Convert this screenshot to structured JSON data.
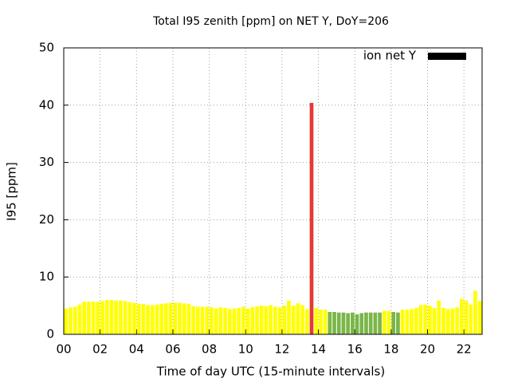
{
  "chart_data": {
    "type": "bar",
    "title": "Total I95 zenith [ppm] on NET Y, DoY=206",
    "x_label": "Time of day UTC (15-minute intervals)",
    "y_label": "I95 [ppm]",
    "xlim": [
      0,
      23
    ],
    "ylim": [
      0,
      50
    ],
    "xticks": [
      {
        "value": 0,
        "label": "00"
      },
      {
        "value": 2,
        "label": "02"
      },
      {
        "value": 4,
        "label": "04"
      },
      {
        "value": 6,
        "label": "06"
      },
      {
        "value": 8,
        "label": "08"
      },
      10,
      12,
      14,
      16,
      18,
      20,
      22
    ],
    "yticks": [
      0,
      10,
      20,
      30,
      40,
      50
    ],
    "grid": true,
    "legend": "top-right",
    "x": [
      0.125,
      0.375,
      0.625,
      0.875,
      1.125,
      1.375,
      1.625,
      1.875,
      2.125,
      2.375,
      2.625,
      2.875,
      3.125,
      3.375,
      3.625,
      3.875,
      4.125,
      4.375,
      4.625,
      4.875,
      5.125,
      5.375,
      5.625,
      5.875,
      6.125,
      6.375,
      6.625,
      6.875,
      7.125,
      7.375,
      7.625,
      7.875,
      8.125,
      8.375,
      8.625,
      8.875,
      9.125,
      9.375,
      9.625,
      9.875,
      10.125,
      10.375,
      10.625,
      10.875,
      11.125,
      11.375,
      11.625,
      11.875,
      12.125,
      12.375,
      12.625,
      12.875,
      13.125,
      13.375,
      13.625,
      13.875,
      14.125,
      14.375,
      14.625,
      14.875,
      15.125,
      15.375,
      15.625,
      15.875,
      16.125,
      16.375,
      16.625,
      16.875,
      17.125,
      17.375,
      17.625,
      17.875,
      18.125,
      18.375,
      18.625,
      18.875,
      19.125,
      19.375,
      19.625,
      19.875,
      20.125,
      20.375,
      20.625,
      20.875,
      21.125,
      21.375,
      21.625,
      21.875,
      22.125,
      22.375,
      22.625,
      22.875
    ],
    "series": [
      {
        "name": "ion net Y",
        "color": "#000000",
        "values": [
          4.5,
          4.7,
          4.8,
          5.2,
          5.7,
          5.7,
          5.7,
          5.7,
          5.8,
          6.0,
          6.0,
          5.9,
          5.9,
          5.8,
          5.6,
          5.5,
          5.3,
          5.3,
          5.1,
          5.1,
          5.2,
          5.3,
          5.4,
          5.5,
          5.5,
          5.5,
          5.4,
          5.3,
          4.9,
          4.8,
          4.8,
          4.8,
          4.7,
          4.5,
          4.7,
          4.6,
          4.4,
          4.5,
          4.6,
          4.8,
          4.5,
          4.7,
          4.9,
          5.0,
          4.9,
          5.1,
          4.8,
          4.7,
          5.0,
          5.9,
          5.0,
          5.4,
          5.1,
          4.4,
          40.4,
          4.6,
          4.3,
          4.3,
          3.9,
          3.9,
          3.8,
          3.8,
          3.7,
          3.8,
          3.5,
          3.7,
          3.8,
          3.8,
          3.8,
          3.8,
          4.1,
          4.1,
          3.9,
          3.8,
          4.3,
          4.3,
          4.4,
          4.6,
          5.1,
          5.2,
          5.0,
          4.6,
          5.9,
          4.6,
          4.4,
          4.5,
          4.7,
          6.2,
          5.9,
          5.2,
          7.6,
          5.8
        ],
        "bar_colors": [
          "#ffff00",
          "#ffff00",
          "#ffff00",
          "#ffff00",
          "#ffff00",
          "#ffff00",
          "#ffff00",
          "#ffff00",
          "#ffff00",
          "#ffff00",
          "#ffff00",
          "#ffff00",
          "#ffff00",
          "#ffff00",
          "#ffff00",
          "#ffff00",
          "#ffff00",
          "#ffff00",
          "#ffff00",
          "#ffff00",
          "#ffff00",
          "#ffff00",
          "#ffff00",
          "#ffff00",
          "#ffff00",
          "#ffff00",
          "#ffff00",
          "#ffff00",
          "#ffff00",
          "#ffff00",
          "#ffff00",
          "#ffff00",
          "#ffff00",
          "#ffff00",
          "#ffff00",
          "#ffff00",
          "#ffff00",
          "#ffff00",
          "#ffff00",
          "#ffff00",
          "#ffff00",
          "#ffff00",
          "#ffff00",
          "#ffff00",
          "#ffff00",
          "#ffff00",
          "#ffff00",
          "#ffff00",
          "#ffff00",
          "#ffff00",
          "#ffff00",
          "#ffff00",
          "#ffff00",
          "#ffff00",
          "#e53935",
          "#ffff00",
          "#ffff00",
          "#ffff00",
          "#7ab648",
          "#7ab648",
          "#7ab648",
          "#7ab648",
          "#7ab648",
          "#7ab648",
          "#7ab648",
          "#7ab648",
          "#7ab648",
          "#7ab648",
          "#7ab648",
          "#7ab648",
          "#ffff00",
          "#ffff00",
          "#7ab648",
          "#7ab648",
          "#ffff00",
          "#ffff00",
          "#ffff00",
          "#ffff00",
          "#ffff00",
          "#ffff00",
          "#ffff00",
          "#ffff00",
          "#ffff00",
          "#ffff00",
          "#ffff00",
          "#ffff00",
          "#ffff00",
          "#ffff00",
          "#ffff00",
          "#ffff00",
          "#ffff00",
          "#ffff00"
        ]
      }
    ]
  }
}
